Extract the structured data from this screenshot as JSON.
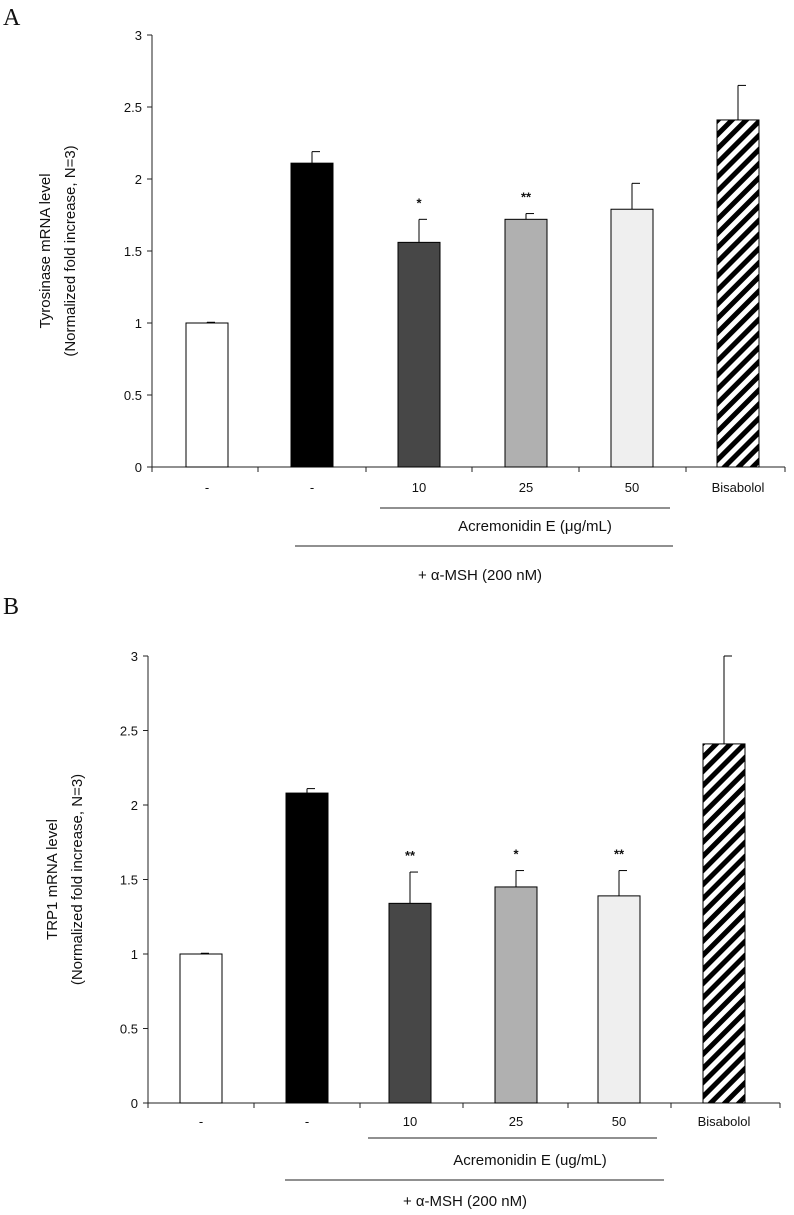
{
  "chart_data": [
    {
      "type": "bar",
      "panel_label": "A",
      "ylabel_line1": "Tyrosinase mRNA level",
      "ylabel_line2": "(Normalized fold increase, N=3)",
      "ylim": [
        0,
        3
      ],
      "yticks": [
        "0",
        "0.5",
        "1",
        "1.5",
        "2",
        "2.5",
        "3"
      ],
      "categories": [
        "-",
        "-",
        "10",
        "25",
        "50",
        "Bisabolol"
      ],
      "values": [
        1.0,
        2.11,
        1.56,
        1.72,
        1.79,
        2.41
      ],
      "errors": [
        0.005,
        0.08,
        0.16,
        0.04,
        0.18,
        0.24
      ],
      "significance": [
        "",
        "",
        "*",
        "**",
        "",
        ""
      ],
      "bar_colors": [
        "#ffffff",
        "#000000",
        "#474747",
        "#b0b0b0",
        "#efefef",
        "hatch"
      ],
      "group_label_inner": "Acremonidin E (μg/mL)",
      "group_label_outer": "+ α-MSH (200 nM)",
      "grid": false
    },
    {
      "type": "bar",
      "panel_label": "B",
      "ylabel_line1": "TRP1 mRNA level",
      "ylabel_line2": "(Normalized fold increase, N=3)",
      "ylim": [
        0,
        3
      ],
      "yticks": [
        "0",
        "0.5",
        "1",
        "1.5",
        "2",
        "2.5",
        "3"
      ],
      "categories": [
        "-",
        "-",
        "10",
        "25",
        "50",
        "Bisabolol"
      ],
      "values": [
        1.0,
        2.08,
        1.34,
        1.45,
        1.39,
        2.41
      ],
      "errors": [
        0.005,
        0.03,
        0.21,
        0.11,
        0.17,
        0.7
      ],
      "significance": [
        "",
        "",
        "**",
        "*",
        "**",
        ""
      ],
      "bar_colors": [
        "#ffffff",
        "#000000",
        "#474747",
        "#b0b0b0",
        "#efefef",
        "hatch"
      ],
      "group_label_inner": "Acremonidin E (ug/mL)",
      "group_label_outer": "+ α-MSH (200 nM)",
      "grid": false
    }
  ]
}
